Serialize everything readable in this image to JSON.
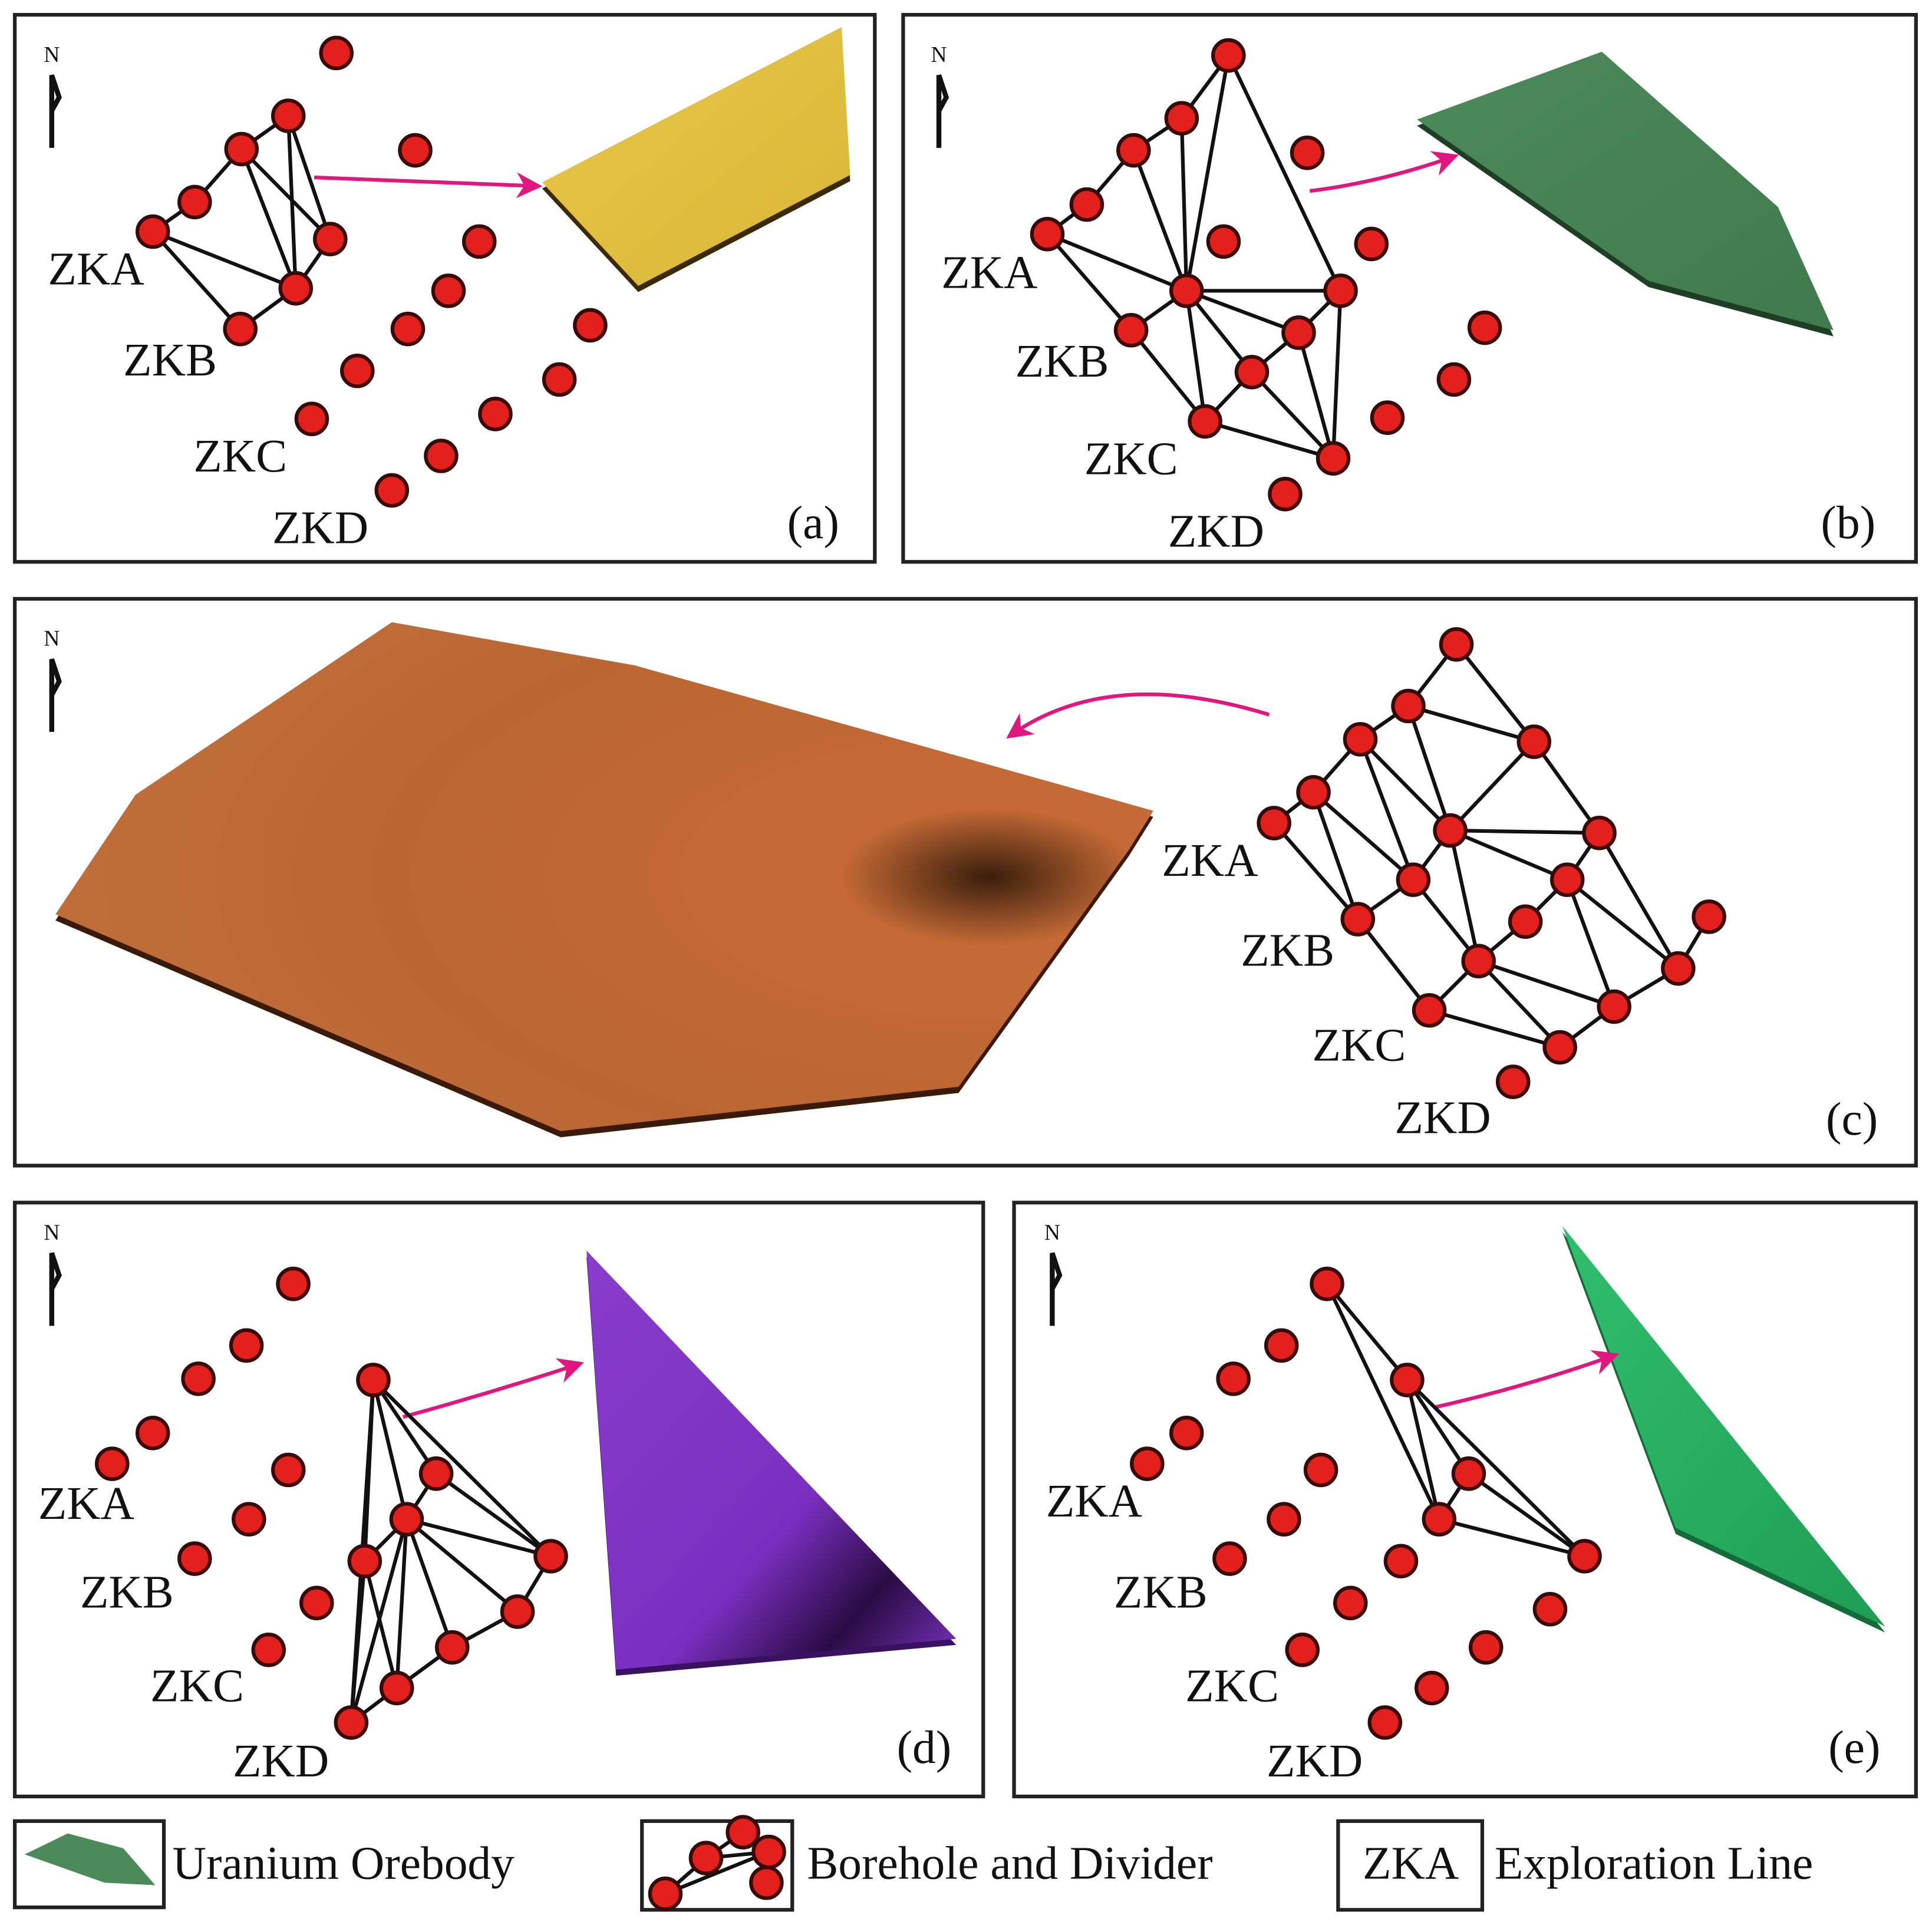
{
  "panels": [
    {
      "label": "(a)",
      "north": "N",
      "lines": [
        "ZKA",
        "ZKB",
        "ZKC",
        "ZKD"
      ]
    },
    {
      "label": "(b)",
      "north": "N",
      "lines": [
        "ZKA",
        "ZKB",
        "ZKC",
        "ZKD"
      ]
    },
    {
      "label": "(c)",
      "north": "N",
      "lines": [
        "ZKA",
        "ZKB",
        "ZKC",
        "ZKD"
      ]
    },
    {
      "label": "(d)",
      "north": "N",
      "lines": [
        "ZKA",
        "ZKB",
        "ZKC",
        "ZKD"
      ]
    },
    {
      "label": "(e)",
      "north": "N",
      "lines": [
        "ZKA",
        "ZKB",
        "ZKC",
        "ZKD"
      ]
    }
  ],
  "legend": [
    {
      "label": "Uranium Orebody"
    },
    {
      "label": "Borehole and Divider"
    },
    {
      "symbol": "ZKA",
      "label": "Exploration Line"
    }
  ]
}
